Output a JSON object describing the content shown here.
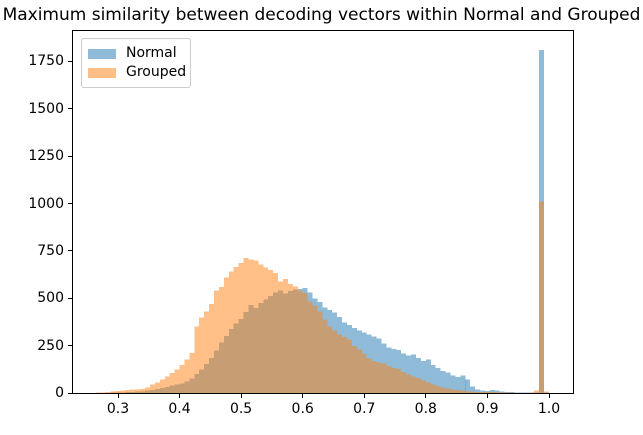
{
  "chart_data": {
    "type": "bar",
    "subtype": "overlapping-histogram",
    "title": "Maximum similarity between decoding vectors within Normal and Grouped",
    "xlabel": "",
    "ylabel": "",
    "grid": false,
    "legend_position": "upper-left",
    "xlim": [
      0.227,
      1.039
    ],
    "ylim": [
      0,
      1910
    ],
    "xticks": [
      0.3,
      0.4,
      0.5,
      0.6,
      0.7,
      0.8,
      0.9,
      1.0
    ],
    "xtick_labels": [
      "0.3",
      "0.4",
      "0.5",
      "0.6",
      "0.7",
      "0.8",
      "0.9",
      "1.0"
    ],
    "yticks": [
      0,
      250,
      500,
      750,
      1000,
      1250,
      1500,
      1750
    ],
    "ytick_labels": [
      "0",
      "250",
      "500",
      "750",
      "1000",
      "1250",
      "1500",
      "1750"
    ],
    "bin_start": 0.264,
    "bin_width": 0.008,
    "series": [
      {
        "name": "Normal",
        "color": "#1f77b4",
        "alpha": 0.5,
        "values": [
          0,
          0,
          1,
          2,
          2,
          3,
          4,
          5,
          7,
          9,
          12,
          16,
          20,
          26,
          32,
          39,
          44,
          50,
          61,
          76,
          101,
          123,
          152,
          185,
          224,
          266,
          301,
          339,
          366,
          391,
          428,
          465,
          448,
          476,
          494,
          512,
          529,
          541,
          524,
          538,
          545,
          549,
          553,
          531,
          498,
          479,
          452,
          438,
          425,
          402,
          371,
          359,
          342,
          331,
          320,
          308,
          299,
          288,
          262,
          241,
          231,
          228,
          209,
          198,
          202,
          185,
          168,
          178,
          148,
          131,
          117,
          109,
          92,
          85,
          93,
          71,
          34,
          19,
          13,
          11,
          16,
          13,
          9,
          6,
          4,
          3,
          2,
          2,
          2,
          3,
          1810,
          2
        ]
      },
      {
        "name": "Grouped",
        "color": "#ff7f0e",
        "alpha": 0.5,
        "values": [
          2,
          3,
          5,
          7,
          10,
          13,
          16,
          19,
          18,
          22,
          30,
          44,
          56,
          70,
          88,
          105,
          124,
          149,
          177,
          211,
          350,
          398,
          430,
          470,
          540,
          560,
          610,
          641,
          665,
          686,
          712,
          705,
          699,
          677,
          662,
          648,
          633,
          589,
          601,
          575,
          563,
          540,
          527,
          483,
          462,
          431,
          389,
          352,
          330,
          308,
          295,
          282,
          248,
          229,
          206,
          181,
          169,
          162,
          155,
          142,
          133,
          126,
          111,
          97,
          86,
          79,
          65,
          56,
          45,
          36,
          28,
          24,
          19,
          15,
          12,
          9,
          8,
          6,
          5,
          5,
          4,
          4,
          3,
          2,
          2,
          1,
          1,
          1,
          2,
          14,
          1010,
          8
        ]
      }
    ]
  }
}
